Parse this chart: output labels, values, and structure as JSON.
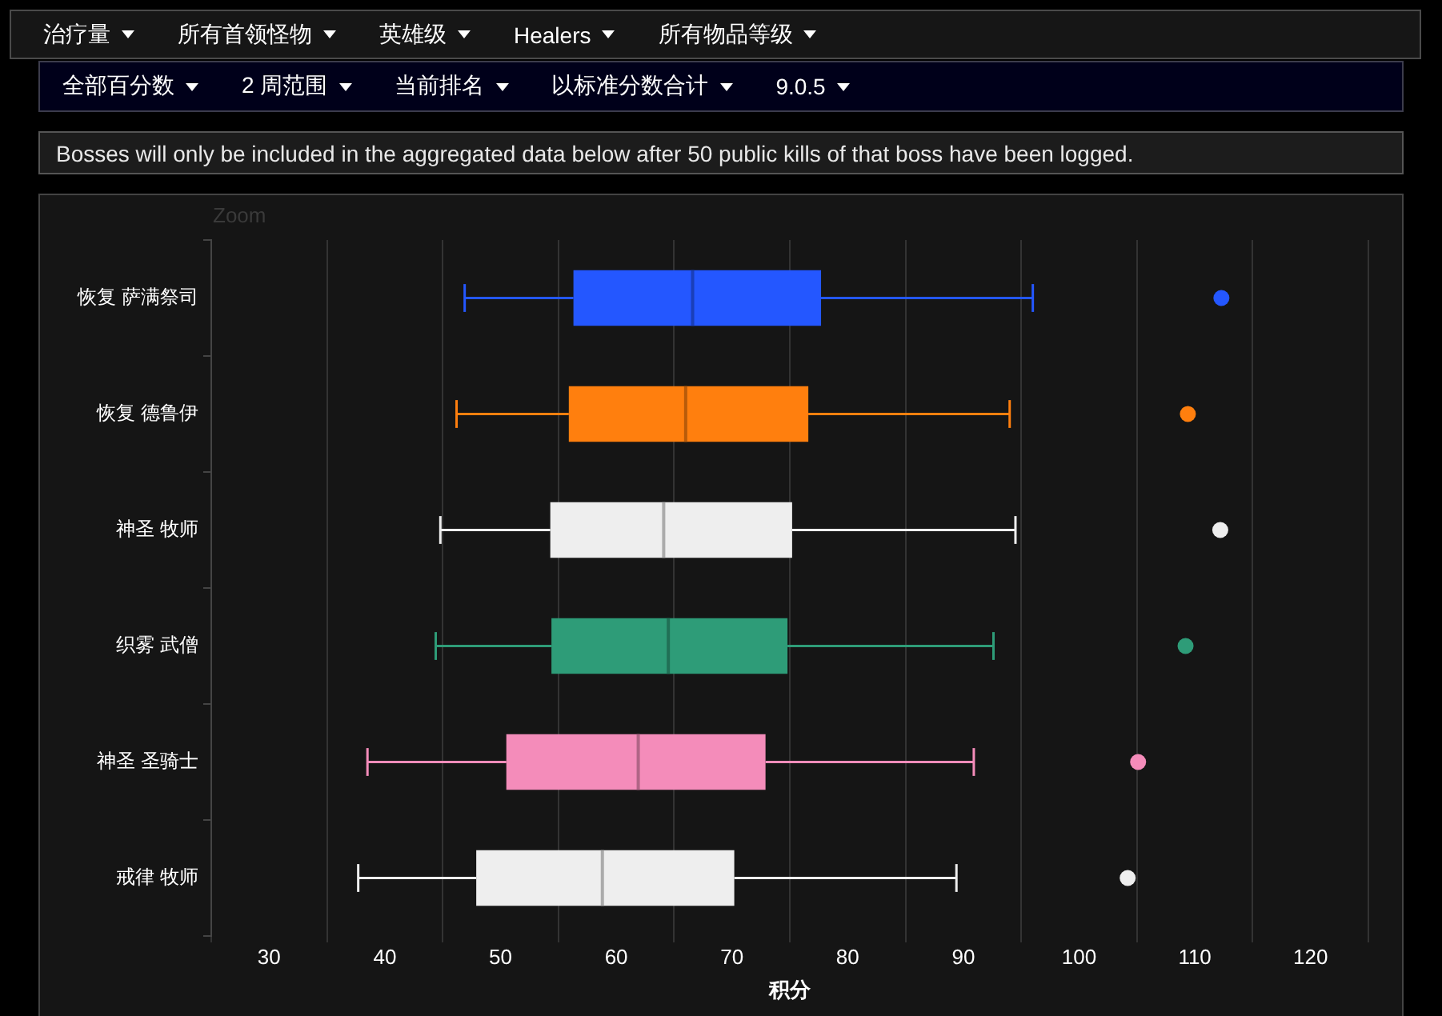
{
  "chart_data": {
    "type": "box",
    "orientation": "horizontal",
    "categories": [
      "恢复 萨满祭司",
      "恢复 德鲁伊",
      "神圣 牧师",
      "织雾 武僧",
      "神圣 圣骑士",
      "戒律 牧师"
    ],
    "boxes": [
      {
        "low": 46.9,
        "q1": 56.3,
        "median": 66.6,
        "q3": 77.7,
        "high": 96.0,
        "outliers": [
          112.3
        ]
      },
      {
        "low": 46.2,
        "q1": 55.9,
        "median": 66.0,
        "q3": 76.6,
        "high": 94.0,
        "outliers": [
          109.4
        ]
      },
      {
        "low": 44.8,
        "q1": 54.3,
        "median": 64.1,
        "q3": 75.2,
        "high": 94.5,
        "outliers": [
          112.2
        ]
      },
      {
        "low": 44.4,
        "q1": 54.4,
        "median": 64.5,
        "q3": 74.8,
        "high": 92.6,
        "outliers": [
          109.2
        ]
      },
      {
        "low": 38.5,
        "q1": 50.5,
        "median": 61.9,
        "q3": 72.9,
        "high": 90.9,
        "outliers": [
          105.1
        ]
      },
      {
        "low": 37.7,
        "q1": 47.9,
        "median": 58.8,
        "q3": 70.2,
        "high": 89.4,
        "outliers": [
          104.2
        ]
      }
    ],
    "colors": [
      "#2457ff",
      "#ff7f0e",
      "#eeeeee",
      "#2e9c78",
      "#f48cba",
      "#eeeeee"
    ],
    "xlabel": "积分",
    "xlim": [
      30,
      120
    ],
    "xticks": [
      30,
      40,
      50,
      60,
      70,
      80,
      90,
      100,
      110,
      120
    ],
    "grid": "x",
    "annotations": [
      "治疗量",
      "所有首领怪物",
      "英雄级",
      "Healers",
      "所有物品等级",
      "全部百分数",
      "2 周范围",
      "当前排名",
      "以标准分数合计",
      "9.0.5",
      "Bosses will only be included in the aggregated data below after 50 public kills of that boss have been logged.",
      "Zoom"
    ]
  }
}
